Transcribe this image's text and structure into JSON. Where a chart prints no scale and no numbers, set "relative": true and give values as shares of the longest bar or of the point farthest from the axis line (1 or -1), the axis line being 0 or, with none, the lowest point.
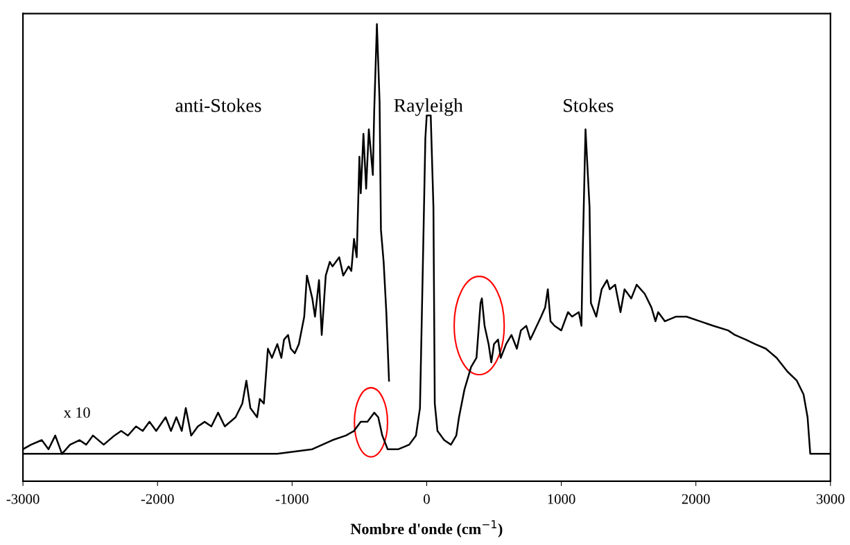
{
  "chart_data": {
    "type": "line",
    "relative": true,
    "xlabel": "Nombre d'onde (cm$^{−1}$)",
    "xlim": [
      -3000,
      3000
    ],
    "xticks": [
      -3000,
      -2000,
      -1000,
      0,
      1000,
      2000,
      3000
    ],
    "grid": false,
    "marker": "none",
    "line_style": "solid",
    "annotations": [
      "anti-Stokes",
      "Rayleigh",
      "Stokes",
      "x 10"
    ],
    "series": [
      {
        "color": "#000000",
        "x": [
          -3000,
          -2650,
          -2010,
          -1625,
          -1110,
          -850,
          -700,
          -600,
          -540,
          -490,
          -440,
          -390,
          -360,
          -330,
          -290,
          -210,
          -130,
          -80,
          -50,
          -30,
          -10,
          0,
          30,
          50,
          60,
          80,
          130,
          180,
          220,
          240,
          280,
          330,
          370,
          380,
          400,
          410,
          430,
          460,
          480,
          500,
          530,
          550,
          590,
          630,
          670,
          700,
          740,
          770,
          850,
          880,
          900,
          920,
          950,
          1000,
          1050,
          1080,
          1130,
          1150,
          1160,
          1180,
          1210,
          1220,
          1260,
          1300,
          1340,
          1360,
          1400,
          1440,
          1470,
          1520,
          1560,
          1620,
          1670,
          1700,
          1720,
          1770,
          1850,
          1930,
          2030,
          2130,
          2240,
          2290,
          2370,
          2440,
          2520,
          2600,
          2680,
          2750,
          2800,
          2830,
          2850,
          2880,
          3000
        ],
        "values": [
          0.06,
          0.06,
          0.06,
          0.06,
          0.06,
          0.07,
          0.09,
          0.1,
          0.11,
          0.13,
          0.13,
          0.15,
          0.14,
          0.1,
          0.07,
          0.07,
          0.08,
          0.1,
          0.16,
          0.45,
          0.75,
          0.8,
          0.8,
          0.6,
          0.17,
          0.11,
          0.09,
          0.08,
          0.1,
          0.14,
          0.2,
          0.25,
          0.27,
          0.31,
          0.39,
          0.4,
          0.34,
          0.3,
          0.26,
          0.3,
          0.31,
          0.27,
          0.3,
          0.32,
          0.29,
          0.33,
          0.34,
          0.31,
          0.36,
          0.38,
          0.42,
          0.35,
          0.34,
          0.33,
          0.37,
          0.36,
          0.37,
          0.34,
          0.51,
          0.77,
          0.6,
          0.39,
          0.36,
          0.42,
          0.44,
          0.42,
          0.43,
          0.37,
          0.42,
          0.4,
          0.43,
          0.41,
          0.38,
          0.35,
          0.37,
          0.35,
          0.36,
          0.36,
          0.35,
          0.34,
          0.33,
          0.32,
          0.31,
          0.3,
          0.29,
          0.27,
          0.24,
          0.22,
          0.19,
          0.14,
          0.06,
          0.06,
          0.06
        ]
      },
      {
        "color": "#000000",
        "x": [
          -3000,
          -2940,
          -2860,
          -2810,
          -2760,
          -2710,
          -2650,
          -2580,
          -2530,
          -2480,
          -2400,
          -2320,
          -2270,
          -2220,
          -2160,
          -2110,
          -2060,
          -2010,
          -1940,
          -1900,
          -1860,
          -1820,
          -1790,
          -1750,
          -1700,
          -1650,
          -1600,
          -1550,
          -1500,
          -1420,
          -1370,
          -1340,
          -1310,
          -1260,
          -1240,
          -1210,
          -1180,
          -1150,
          -1110,
          -1080,
          -1060,
          -1030,
          -1010,
          -980,
          -950,
          -910,
          -890,
          -850,
          -830,
          -800,
          -780,
          -750,
          -720,
          -700,
          -650,
          -620,
          -580,
          -560,
          -540,
          -520,
          -500,
          -490,
          -470,
          -450,
          -430,
          -400,
          -390,
          -370,
          -350,
          -340,
          -320,
          -300,
          -280
        ],
        "values": [
          0.07,
          0.08,
          0.09,
          0.07,
          0.1,
          0.06,
          0.08,
          0.09,
          0.08,
          0.1,
          0.08,
          0.1,
          0.11,
          0.1,
          0.12,
          0.11,
          0.13,
          0.11,
          0.14,
          0.11,
          0.14,
          0.11,
          0.16,
          0.1,
          0.12,
          0.13,
          0.12,
          0.15,
          0.12,
          0.14,
          0.17,
          0.22,
          0.16,
          0.14,
          0.18,
          0.17,
          0.29,
          0.27,
          0.3,
          0.27,
          0.31,
          0.32,
          0.29,
          0.28,
          0.3,
          0.36,
          0.45,
          0.4,
          0.36,
          0.44,
          0.32,
          0.45,
          0.48,
          0.47,
          0.49,
          0.45,
          0.47,
          0.46,
          0.53,
          0.49,
          0.71,
          0.63,
          0.76,
          0.64,
          0.77,
          0.67,
          0.81,
          1.0,
          0.83,
          0.55,
          0.48,
          0.37,
          0.22
        ]
      }
    ]
  }
}
